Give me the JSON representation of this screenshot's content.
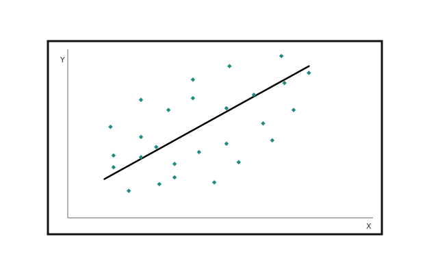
{
  "chart_data": {
    "type": "scatter",
    "title": "",
    "xlabel": "X",
    "ylabel": "Y",
    "xlim": [
      0,
      10
    ],
    "ylim": [
      0,
      10
    ],
    "grid": false,
    "legend": "none",
    "marker_color": "#1f8a80",
    "line_color": "#000000",
    "points": [
      {
        "x": 1.4,
        "y": 5.4
      },
      {
        "x": 1.5,
        "y": 3.7
      },
      {
        "x": 1.5,
        "y": 3.0
      },
      {
        "x": 2.0,
        "y": 1.6
      },
      {
        "x": 2.4,
        "y": 7.0
      },
      {
        "x": 2.4,
        "y": 4.8
      },
      {
        "x": 2.4,
        "y": 3.6
      },
      {
        "x": 2.9,
        "y": 4.2
      },
      {
        "x": 3.0,
        "y": 2.0
      },
      {
        "x": 3.3,
        "y": 6.4
      },
      {
        "x": 3.5,
        "y": 3.2
      },
      {
        "x": 3.5,
        "y": 2.4
      },
      {
        "x": 4.1,
        "y": 8.2
      },
      {
        "x": 4.1,
        "y": 7.1
      },
      {
        "x": 4.3,
        "y": 3.9
      },
      {
        "x": 4.8,
        "y": 2.1
      },
      {
        "x": 5.3,
        "y": 9.0
      },
      {
        "x": 5.2,
        "y": 6.5
      },
      {
        "x": 5.2,
        "y": 4.4
      },
      {
        "x": 5.6,
        "y": 3.3
      },
      {
        "x": 6.1,
        "y": 7.3
      },
      {
        "x": 6.4,
        "y": 5.6
      },
      {
        "x": 6.7,
        "y": 4.6
      },
      {
        "x": 7.0,
        "y": 9.6
      },
      {
        "x": 7.1,
        "y": 8.0
      },
      {
        "x": 7.4,
        "y": 6.4
      },
      {
        "x": 7.9,
        "y": 8.6
      }
    ],
    "trendline": [
      {
        "x": 1.2,
        "y": 2.3
      },
      {
        "x": 7.9,
        "y": 9.0
      }
    ]
  }
}
